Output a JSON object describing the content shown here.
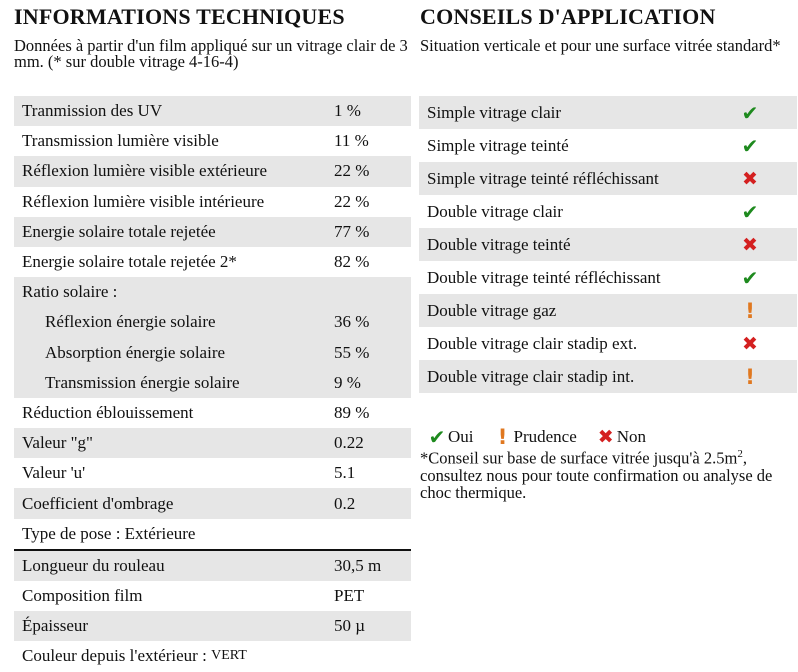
{
  "left": {
    "title": "INFORMATIONS TECHNIQUES",
    "subtitle": "Données à partir d'un film appliqué sur un vitrage clair de 3 mm. (* sur double vitrage 4-16-4)",
    "rows": [
      {
        "label": "Tranmission des UV",
        "value": "1 %"
      },
      {
        "label": "Transmission lumière visible",
        "value": "11 %"
      },
      {
        "label": "Réflexion lumière visible extérieure",
        "value": "22 %"
      },
      {
        "label": "Réflexion lumière visible intérieure",
        "value": "22 %"
      },
      {
        "label": "Energie solaire totale rejetée",
        "value": "77 %"
      },
      {
        "label": "Energie solaire totale rejetée 2*",
        "value": "82 %"
      },
      {
        "label": "Ratio solaire :",
        "value": ""
      },
      {
        "label": "Réflexion énergie solaire",
        "value": "36 %"
      },
      {
        "label": "Absorption énergie solaire",
        "value": "55 %"
      },
      {
        "label": "Transmission énergie solaire",
        "value": "9 %"
      },
      {
        "label": "Réduction éblouissement",
        "value": "89 %"
      },
      {
        "label": "Valeur \"g\"",
        "value": "0.22"
      },
      {
        "label": "Valeur 'u'",
        "value": "5.1"
      },
      {
        "label": "Coefficient d'ombrage",
        "value": "0.2"
      },
      {
        "label": "Type de pose : Extérieure",
        "value": ""
      },
      {
        "label": "Longueur du rouleau",
        "value": "30,5 m"
      },
      {
        "label": "Composition film",
        "value": "PET"
      },
      {
        "label": "Épaisseur",
        "value": "50 µ"
      }
    ],
    "color_label": "Couleur depuis l'extérieur :",
    "color_value": "VERT"
  },
  "right": {
    "title": "CONSEILS D'APPLICATION",
    "subtitle": "Situation verticale et pour une surface vitrée standard*",
    "rows": [
      {
        "label": "Simple vitrage clair",
        "status": "oui"
      },
      {
        "label": "Simple vitrage teinté",
        "status": "oui"
      },
      {
        "label": "Simple vitrage teinté réfléchissant",
        "status": "non"
      },
      {
        "label": "Double vitrage clair",
        "status": "oui"
      },
      {
        "label": "Double vitrage teinté",
        "status": "non"
      },
      {
        "label": "Double vitrage teinté réfléchissant",
        "status": "oui"
      },
      {
        "label": "Double vitrage gaz",
        "status": "prudence"
      },
      {
        "label": "Double vitrage clair stadip ext.",
        "status": "non"
      },
      {
        "label": "Double vitrage clair stadip int.",
        "status": "prudence"
      }
    ],
    "legend": {
      "oui": "Oui",
      "prudence": "Prudence",
      "non": "Non"
    },
    "note_before": "*Conseil sur base de surface vitrée jusqu'à 2.5m",
    "note_sup": "2",
    "note_after": ", consultez nous pour toute confirmation ou analyse de choc thermique."
  },
  "icons": {
    "oui": "check-icon",
    "non": "cross-icon",
    "prudence": "exclamation-icon"
  },
  "colors": {
    "oui": "#1e8a1e",
    "non": "#d42020",
    "prudence": "#e07820",
    "row_shade": "#e6e6e6"
  }
}
